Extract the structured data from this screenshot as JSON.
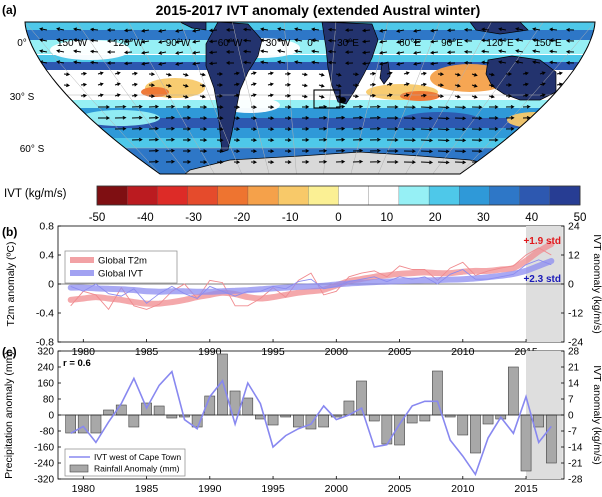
{
  "figure": {
    "title": "2015-2017 IVT anomaly (extended Austral winter)",
    "panel_a_label": "(a)",
    "panel_b_label": "(b)",
    "panel_c_label": "(c)"
  },
  "map": {
    "lon_labels": [
      "150°W",
      "120°W",
      "90°W",
      "60°W",
      "30°W",
      "0°",
      "30°E",
      "60°E",
      "90°E",
      "120°E",
      "150°E"
    ],
    "lat_labels": [
      "0°",
      "30° S",
      "60° S"
    ],
    "colors": {
      "ocean_low": "#ffffff",
      "land": "#23336e",
      "antarctica": "#d9d9d9",
      "vector": "#000000"
    }
  },
  "colorbar": {
    "label": "IVT (kg/m/s)",
    "ticks": [
      "-50",
      "-40",
      "-30",
      "-20",
      "-10",
      "0",
      "10",
      "20",
      "30",
      "40",
      "50"
    ],
    "colors": [
      "#7f0f12",
      "#bb1b20",
      "#dd2b27",
      "#e54b2c",
      "#ee7430",
      "#f5a14a",
      "#f8c969",
      "#fbf094",
      "#ffffff",
      "#ffffff",
      "#96f0f5",
      "#4ec8e9",
      "#2f99d8",
      "#2e77c7",
      "#2d58b0",
      "#273d93"
    ]
  },
  "chart_data": [
    {
      "type": "line",
      "panel": "b",
      "xlim": [
        1978,
        2018
      ],
      "x_ticks": [
        1980,
        1985,
        1990,
        1995,
        2000,
        2005,
        2010,
        2015
      ],
      "x_tick_labels": [
        "1980",
        "1985",
        "1990",
        "1995",
        "2000",
        "2005",
        "2010",
        "2015"
      ],
      "ylabel_left": "T2m anomaly (ºC)",
      "ylim_left": [
        -0.8,
        0.8
      ],
      "yticks_left": [
        "-0.8",
        "-0.4",
        "0",
        "0.4",
        "0.8"
      ],
      "ylabel_right": "IVT anomaly (kg/m/s)",
      "ylim_right": [
        -24,
        24
      ],
      "yticks_right": [
        "-24",
        "-12",
        "0",
        "12",
        "24"
      ],
      "highlight_range": [
        2015,
        2017
      ],
      "legend": [
        "Global T2m",
        "Global IVT"
      ],
      "annotations": {
        "t2m": "+1.9 std",
        "ivt": "+2.3 std"
      },
      "colors": {
        "t2m": "#f08b8f",
        "ivt": "#8c8cf0"
      },
      "x": [
        1979,
        1980,
        1981,
        1982,
        1983,
        1984,
        1985,
        1986,
        1987,
        1988,
        1989,
        1990,
        1991,
        1992,
        1993,
        1994,
        1995,
        1996,
        1997,
        1998,
        1999,
        2000,
        2001,
        2002,
        2003,
        2004,
        2005,
        2006,
        2007,
        2008,
        2009,
        2010,
        2011,
        2012,
        2013,
        2014,
        2015,
        2016,
        2017
      ],
      "series": [
        {
          "name": "Global T2m",
          "axis": "left",
          "smooth": true,
          "values": [
            -0.22,
            -0.2,
            -0.18,
            -0.2,
            -0.22,
            -0.25,
            -0.27,
            -0.27,
            -0.25,
            -0.22,
            -0.18,
            -0.15,
            -0.12,
            -0.14,
            -0.18,
            -0.2,
            -0.18,
            -0.15,
            -0.12,
            -0.1,
            -0.08,
            -0.02,
            0.04,
            0.07,
            0.1,
            0.12,
            0.14,
            0.15,
            0.16,
            0.15,
            0.15,
            0.17,
            0.18,
            0.18,
            0.2,
            0.22,
            0.32,
            0.45,
            0.55
          ]
        },
        {
          "name": "Global T2m annual",
          "axis": "left",
          "smooth": false,
          "values": [
            -0.3,
            -0.1,
            -0.15,
            -0.35,
            -0.05,
            -0.3,
            -0.35,
            -0.28,
            -0.1,
            0.0,
            -0.2,
            0.05,
            0.02,
            -0.3,
            -0.3,
            -0.2,
            -0.05,
            -0.18,
            0.05,
            0.15,
            -0.15,
            -0.1,
            0.1,
            0.15,
            0.18,
            0.1,
            0.25,
            0.2,
            0.2,
            0.05,
            0.22,
            0.3,
            0.12,
            0.18,
            0.22,
            0.25,
            0.4,
            0.5,
            0.4
          ]
        },
        {
          "name": "Global IVT",
          "axis": "right",
          "smooth": true,
          "values": [
            -1.5,
            -1.5,
            -1.8,
            -2,
            -2.2,
            -2.5,
            -3,
            -3.2,
            -3,
            -3,
            -3.2,
            -3.2,
            -3,
            -2.8,
            -2.6,
            -2.2,
            -1.8,
            -1.5,
            -1.2,
            -1.0,
            -0.7,
            -0.2,
            0.2,
            0.5,
            0.8,
            1,
            1.2,
            1.4,
            1.5,
            1.6,
            1.8,
            2,
            2.3,
            2.8,
            3.4,
            4.2,
            5.5,
            7.5,
            9.5
          ]
        },
        {
          "name": "Global IVT annual",
          "axis": "right",
          "smooth": false,
          "values": [
            -1,
            -3,
            0,
            -4,
            -5,
            -2,
            -8,
            -4,
            -1,
            -4,
            -6,
            -1,
            -3,
            -5,
            -3,
            -3,
            -1,
            -2,
            1,
            2,
            -2,
            -1,
            1,
            2,
            3,
            1,
            3,
            2,
            3,
            0,
            4,
            6,
            2,
            2,
            3,
            4,
            8,
            10,
            8
          ]
        }
      ]
    },
    {
      "type": "bar",
      "panel": "c",
      "xlim": [
        1978,
        2018
      ],
      "x_ticks": [
        1980,
        1985,
        1990,
        1995,
        2000,
        2005,
        2010,
        2015
      ],
      "x_tick_labels": [
        "1980",
        "1985",
        "1990",
        "1995",
        "2000",
        "2005",
        "2010",
        "2015"
      ],
      "ylabel_left": "Precipitation anomaly (mm)",
      "ylim_left": [
        -320,
        320
      ],
      "yticks_left": [
        "320",
        "240",
        "160",
        "80",
        "0",
        "-80",
        "-160",
        "-240",
        "-320"
      ],
      "ylabel_right": "IVT anomaly (kg/m/s)",
      "ylim_right": [
        -28,
        28
      ],
      "yticks_right": [
        "28",
        "21",
        "14",
        "7",
        "0",
        "-7",
        "-14",
        "-21",
        "-28"
      ],
      "highlight_range": [
        2015,
        2017
      ],
      "annotation": "r = 0.6",
      "legend": [
        "IVT west of Cape Town",
        "Rainfall Anomaly (mm)"
      ],
      "colors": {
        "bars": "#a8a8a8",
        "ivt": "#8888f0"
      },
      "x": [
        1979,
        1980,
        1981,
        1982,
        1983,
        1984,
        1985,
        1986,
        1987,
        1988,
        1989,
        1990,
        1991,
        1992,
        1993,
        1994,
        1995,
        1996,
        1997,
        1998,
        1999,
        2000,
        2001,
        2002,
        2003,
        2004,
        2005,
        2006,
        2007,
        2008,
        2009,
        2010,
        2011,
        2012,
        2013,
        2014,
        2015,
        2016,
        2017
      ],
      "series": [
        {
          "name": "Rainfall Anomaly (mm)",
          "axis": "left",
          "values": [
            -90,
            -90,
            -90,
            25,
            50,
            -60,
            60,
            45,
            -15,
            -10,
            -60,
            95,
            305,
            120,
            85,
            -20,
            -50,
            -10,
            -60,
            -70,
            -60,
            -10,
            70,
            170,
            -30,
            -145,
            -150,
            -40,
            -30,
            220,
            -10,
            -100,
            -190,
            -45,
            -20,
            240,
            -280,
            -60,
            -240
          ]
        },
        {
          "name": "IVT west of Cape Town",
          "axis": "right",
          "values": [
            -8,
            -5,
            -12,
            -3,
            5,
            16,
            3,
            13,
            19,
            -2,
            -6,
            8,
            15,
            -4,
            14,
            5,
            -14,
            -9,
            -6,
            -4,
            4,
            -2,
            0,
            3,
            -14,
            -13,
            -4,
            4,
            6,
            6,
            -11,
            -18,
            -26,
            -10,
            -1,
            -8,
            8,
            -12,
            -5
          ]
        }
      ]
    }
  ]
}
